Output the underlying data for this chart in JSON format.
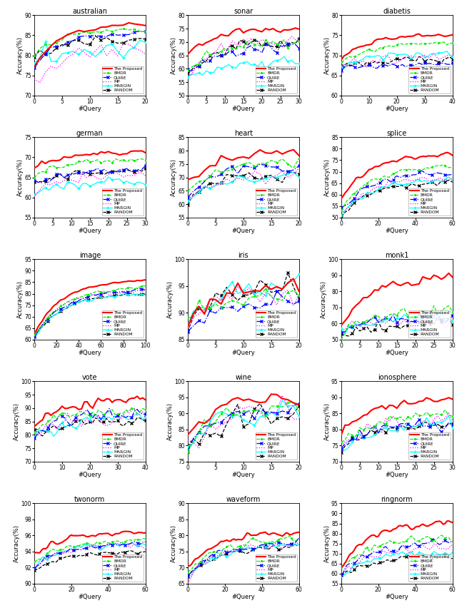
{
  "datasets": [
    {
      "name": "australian",
      "xlim": [
        0,
        20
      ],
      "ylim": [
        70,
        90
      ],
      "yticks": [
        70,
        75,
        80,
        85,
        90
      ],
      "xticks": [
        0,
        5,
        10,
        15,
        20
      ],
      "n_queries": 21
    },
    {
      "name": "sonar",
      "xlim": [
        0,
        30
      ],
      "ylim": [
        50,
        80
      ],
      "yticks": [
        50,
        55,
        60,
        65,
        70,
        75,
        80
      ],
      "xticks": [
        0,
        5,
        10,
        15,
        20,
        25,
        30
      ],
      "n_queries": 31
    },
    {
      "name": "diabetis",
      "xlim": [
        0,
        40
      ],
      "ylim": [
        60,
        80
      ],
      "yticks": [
        60,
        65,
        70,
        75,
        80
      ],
      "xticks": [
        0,
        10,
        20,
        30,
        40
      ],
      "n_queries": 41
    },
    {
      "name": "german",
      "xlim": [
        0,
        30
      ],
      "ylim": [
        55,
        75
      ],
      "yticks": [
        55,
        60,
        65,
        70,
        75
      ],
      "xticks": [
        0,
        5,
        10,
        15,
        20,
        25,
        30
      ],
      "n_queries": 31
    },
    {
      "name": "heart",
      "xlim": [
        0,
        20
      ],
      "ylim": [
        55,
        85
      ],
      "yticks": [
        55,
        60,
        65,
        70,
        75,
        80,
        85
      ],
      "xticks": [
        0,
        5,
        10,
        15,
        20
      ],
      "n_queries": 21
    },
    {
      "name": "splice",
      "xlim": [
        0,
        60
      ],
      "ylim": [
        50,
        85
      ],
      "yticks": [
        50,
        55,
        60,
        65,
        70,
        75,
        80,
        85
      ],
      "xticks": [
        0,
        20,
        40,
        60
      ],
      "n_queries": 61
    },
    {
      "name": "image",
      "xlim": [
        0,
        100
      ],
      "ylim": [
        60,
        95
      ],
      "yticks": [
        60,
        65,
        70,
        75,
        80,
        85,
        90,
        95
      ],
      "xticks": [
        0,
        20,
        40,
        60,
        80,
        100
      ],
      "n_queries": 101
    },
    {
      "name": "iris",
      "xlim": [
        0,
        20
      ],
      "ylim": [
        85,
        100
      ],
      "yticks": [
        85,
        90,
        95,
        100
      ],
      "xticks": [
        0,
        5,
        10,
        15,
        20
      ],
      "n_queries": 21
    },
    {
      "name": "monk1",
      "xlim": [
        0,
        30
      ],
      "ylim": [
        50,
        100
      ],
      "yticks": [
        50,
        60,
        70,
        80,
        90,
        100
      ],
      "xticks": [
        0,
        5,
        10,
        15,
        20,
        25,
        30
      ],
      "n_queries": 31
    },
    {
      "name": "vote",
      "xlim": [
        0,
        40
      ],
      "ylim": [
        70,
        100
      ],
      "yticks": [
        70,
        75,
        80,
        85,
        90,
        95,
        100
      ],
      "xticks": [
        0,
        10,
        20,
        30,
        40
      ],
      "n_queries": 41
    },
    {
      "name": "wine",
      "xlim": [
        0,
        20
      ],
      "ylim": [
        75,
        100
      ],
      "yticks": [
        75,
        80,
        85,
        90,
        95,
        100
      ],
      "xticks": [
        0,
        5,
        10,
        15,
        20
      ],
      "n_queries": 21
    },
    {
      "name": "ionosphere",
      "xlim": [
        0,
        30
      ],
      "ylim": [
        70,
        95
      ],
      "yticks": [
        70,
        75,
        80,
        85,
        90,
        95
      ],
      "xticks": [
        0,
        5,
        10,
        15,
        20,
        25,
        30
      ],
      "n_queries": 31
    },
    {
      "name": "twonorm",
      "xlim": [
        0,
        60
      ],
      "ylim": [
        90,
        100
      ],
      "yticks": [
        90,
        92,
        94,
        96,
        98,
        100
      ],
      "xticks": [
        0,
        20,
        40,
        60
      ],
      "n_queries": 61
    },
    {
      "name": "waveform",
      "xlim": [
        0,
        60
      ],
      "ylim": [
        65,
        90
      ],
      "yticks": [
        65,
        70,
        75,
        80,
        85,
        90
      ],
      "xticks": [
        0,
        20,
        40,
        60
      ],
      "n_queries": 61
    },
    {
      "name": "ringnorm",
      "xlim": [
        0,
        60
      ],
      "ylim": [
        55,
        95
      ],
      "yticks": [
        55,
        60,
        65,
        70,
        75,
        80,
        85,
        90,
        95
      ],
      "xticks": [
        0,
        20,
        40,
        60
      ],
      "n_queries": 61
    }
  ],
  "methods": [
    "The Proposed",
    "BMDR",
    "QUIRE",
    "MP",
    "MARGIN",
    "RANDOM"
  ],
  "method_styles": {
    "The Proposed": {
      "color": "red",
      "ls": "-",
      "lw": 1.5,
      "marker": "None",
      "ms": 2.5,
      "dashes": []
    },
    "BMDR": {
      "color": "#00ee00",
      "ls": "--",
      "lw": 0.9,
      "marker": ".",
      "ms": 2.5,
      "dashes": [
        4,
        2
      ]
    },
    "QUIRE": {
      "color": "blue",
      "ls": "-.",
      "lw": 0.9,
      "marker": "x",
      "ms": 2.5,
      "dashes": []
    },
    "MP": {
      "color": "magenta",
      "ls": ":",
      "lw": 0.9,
      "marker": "None",
      "ms": 2.5,
      "dashes": []
    },
    "MARGIN": {
      "color": "cyan",
      "ls": "-",
      "lw": 0.9,
      "marker": "+",
      "ms": 2.5,
      "dashes": []
    },
    "RANDOM": {
      "color": "black",
      "ls": "--",
      "lw": 0.9,
      "marker": "x",
      "ms": 2.5,
      "dashes": [
        2,
        2
      ]
    }
  },
  "curve_params": {
    "australian": {
      "The Proposed": [
        77.0,
        87.5,
        88.5,
        0.6,
        1.0
      ],
      "BMDR": [
        80.0,
        86.5,
        87.0,
        0.7,
        0.8
      ],
      "QUIRE": [
        77.0,
        85.5,
        86.0,
        0.8,
        0.8
      ],
      "MP": [
        72.0,
        80.0,
        85.5,
        2.0,
        0.5
      ],
      "MARGIN": [
        76.5,
        78.0,
        85.0,
        2.5,
        0.4
      ],
      "RANDOM": [
        79.0,
        82.5,
        86.0,
        1.2,
        0.6
      ]
    },
    "sonar": {
      "The Proposed": [
        65.0,
        73.0,
        78.0,
        1.5,
        0.7
      ],
      "BMDR": [
        60.0,
        67.0,
        73.0,
        2.0,
        0.6
      ],
      "QUIRE": [
        58.0,
        64.0,
        72.0,
        1.8,
        0.6
      ],
      "MP": [
        58.0,
        66.0,
        76.0,
        2.5,
        0.5
      ],
      "MARGIN": [
        57.0,
        60.0,
        65.0,
        2.0,
        0.5
      ],
      "RANDOM": [
        58.0,
        66.0,
        75.0,
        2.5,
        0.5
      ]
    },
    "diabetis": {
      "The Proposed": [
        69.0,
        74.5,
        76.0,
        0.5,
        0.8
      ],
      "BMDR": [
        68.0,
        72.5,
        74.0,
        0.6,
        0.7
      ],
      "QUIRE": [
        67.0,
        67.5,
        68.0,
        0.8,
        0.5
      ],
      "MP": [
        67.0,
        69.0,
        70.5,
        1.2,
        0.5
      ],
      "MARGIN": [
        67.5,
        69.5,
        71.5,
        1.0,
        0.5
      ],
      "RANDOM": [
        67.0,
        68.5,
        70.0,
        0.9,
        0.5
      ]
    },
    "german": {
      "The Proposed": [
        67.0,
        70.5,
        72.5,
        0.6,
        0.7
      ],
      "BMDR": [
        65.5,
        68.5,
        70.5,
        0.7,
        0.6
      ],
      "QUIRE": [
        63.0,
        66.0,
        68.0,
        0.8,
        0.6
      ],
      "MP": [
        61.5,
        64.5,
        67.0,
        1.0,
        0.5
      ],
      "MARGIN": [
        60.5,
        63.0,
        65.5,
        1.0,
        0.5
      ],
      "RANDOM": [
        63.0,
        66.0,
        68.0,
        0.9,
        0.5
      ]
    },
    "heart": {
      "The Proposed": [
        67.0,
        78.0,
        82.0,
        2.0,
        0.6
      ],
      "BMDR": [
        64.0,
        74.0,
        78.0,
        2.2,
        0.5
      ],
      "QUIRE": [
        63.0,
        72.0,
        76.0,
        2.2,
        0.5
      ],
      "MP": [
        60.0,
        69.0,
        74.0,
        2.8,
        0.4
      ],
      "MARGIN": [
        61.0,
        68.0,
        73.0,
        2.8,
        0.4
      ],
      "RANDOM": [
        62.0,
        70.0,
        73.0,
        2.2,
        0.5
      ]
    },
    "splice": {
      "The Proposed": [
        58.0,
        74.0,
        82.0,
        1.2,
        0.7
      ],
      "BMDR": [
        53.0,
        68.0,
        78.0,
        1.5,
        0.6
      ],
      "QUIRE": [
        53.0,
        65.0,
        75.0,
        1.3,
        0.6
      ],
      "MP": [
        51.0,
        62.0,
        74.0,
        2.0,
        0.5
      ],
      "MARGIN": [
        51.0,
        61.0,
        73.0,
        1.8,
        0.5
      ],
      "RANDOM": [
        51.0,
        60.0,
        72.0,
        1.5,
        0.5
      ]
    },
    "image": {
      "The Proposed": [
        62.0,
        82.0,
        91.0,
        1.0,
        0.8
      ],
      "BMDR": [
        61.0,
        78.0,
        89.0,
        1.2,
        0.7
      ],
      "QUIRE": [
        61.0,
        76.0,
        88.5,
        1.2,
        0.7
      ],
      "MP": [
        62.0,
        76.0,
        88.0,
        1.5,
        0.6
      ],
      "MARGIN": [
        61.0,
        74.0,
        87.5,
        1.2,
        0.7
      ],
      "RANDOM": [
        61.0,
        74.0,
        87.5,
        1.0,
        0.7
      ]
    },
    "iris": {
      "The Proposed": [
        88.0,
        94.5,
        96.5,
        1.5,
        0.6
      ],
      "BMDR": [
        88.0,
        93.0,
        94.0,
        1.8,
        0.5
      ],
      "QUIRE": [
        87.0,
        91.0,
        93.0,
        2.0,
        0.5
      ],
      "MP": [
        87.5,
        92.0,
        95.0,
        2.5,
        0.4
      ],
      "MARGIN": [
        88.5,
        93.5,
        96.5,
        2.0,
        0.5
      ],
      "RANDOM": [
        88.0,
        93.5,
        95.5,
        2.2,
        0.5
      ]
    },
    "monk1": {
      "The Proposed": [
        58.0,
        82.0,
        98.0,
        3.0,
        0.7
      ],
      "BMDR": [
        54.0,
        64.0,
        75.0,
        4.0,
        0.5
      ],
      "QUIRE": [
        53.0,
        61.0,
        70.0,
        4.0,
        0.5
      ],
      "MP": [
        53.0,
        59.0,
        68.0,
        4.5,
        0.4
      ],
      "MARGIN": [
        53.0,
        61.0,
        70.0,
        4.0,
        0.5
      ],
      "RANDOM": [
        52.0,
        57.0,
        64.0,
        3.5,
        0.4
      ]
    },
    "vote": {
      "The Proposed": [
        83.0,
        91.0,
        95.5,
        2.0,
        0.7
      ],
      "BMDR": [
        81.0,
        87.0,
        91.5,
        2.5,
        0.6
      ],
      "QUIRE": [
        80.0,
        86.0,
        91.0,
        2.5,
        0.6
      ],
      "MP": [
        79.0,
        85.0,
        89.5,
        3.0,
        0.5
      ],
      "MARGIN": [
        79.0,
        84.0,
        89.0,
        2.8,
        0.5
      ],
      "RANDOM": [
        79.0,
        83.5,
        88.0,
        2.2,
        0.6
      ]
    },
    "wine": {
      "The Proposed": [
        83.0,
        93.0,
        97.0,
        2.0,
        0.7
      ],
      "BMDR": [
        80.0,
        90.0,
        95.0,
        2.5,
        0.6
      ],
      "QUIRE": [
        79.0,
        88.5,
        94.5,
        2.5,
        0.6
      ],
      "MP": [
        79.0,
        88.0,
        95.0,
        4.0,
        0.4
      ],
      "MARGIN": [
        80.0,
        89.5,
        94.0,
        3.5,
        0.5
      ],
      "RANDOM": [
        79.0,
        87.0,
        92.0,
        4.0,
        0.4
      ]
    },
    "ionosphere": {
      "The Proposed": [
        78.0,
        87.5,
        92.0,
        1.3,
        0.7
      ],
      "BMDR": [
        75.0,
        83.0,
        87.5,
        1.8,
        0.6
      ],
      "QUIRE": [
        74.0,
        80.0,
        84.5,
        1.8,
        0.6
      ],
      "MP": [
        74.0,
        81.0,
        86.0,
        2.5,
        0.5
      ],
      "MARGIN": [
        74.0,
        80.0,
        85.5,
        2.0,
        0.5
      ],
      "RANDOM": [
        74.0,
        79.5,
        83.5,
        2.0,
        0.5
      ]
    },
    "twonorm": {
      "The Proposed": [
        93.5,
        96.0,
        97.0,
        0.4,
        0.8
      ],
      "BMDR": [
        92.5,
        95.0,
        96.0,
        0.5,
        0.7
      ],
      "QUIRE": [
        92.0,
        94.5,
        95.5,
        0.5,
        0.7
      ],
      "MP": [
        92.0,
        94.5,
        95.5,
        0.6,
        0.7
      ],
      "MARGIN": [
        92.0,
        94.5,
        95.5,
        0.5,
        0.7
      ],
      "RANDOM": [
        91.5,
        93.5,
        94.5,
        0.4,
        0.8
      ]
    },
    "waveform": {
      "The Proposed": [
        70.0,
        79.0,
        83.0,
        1.2,
        0.7
      ],
      "BMDR": [
        68.0,
        77.0,
        81.0,
        1.4,
        0.6
      ],
      "QUIRE": [
        67.5,
        76.0,
        80.0,
        1.3,
        0.6
      ],
      "MP": [
        67.0,
        75.5,
        80.0,
        1.8,
        0.5
      ],
      "MARGIN": [
        67.0,
        75.0,
        79.5,
        1.5,
        0.5
      ],
      "RANDOM": [
        67.0,
        75.0,
        79.0,
        1.3,
        0.6
      ]
    },
    "ringnorm": {
      "The Proposed": [
        63.0,
        80.0,
        92.0,
        2.0,
        0.7
      ],
      "BMDR": [
        61.0,
        73.0,
        85.0,
        2.5,
        0.6
      ],
      "QUIRE": [
        60.0,
        70.0,
        82.0,
        2.5,
        0.6
      ],
      "MP": [
        59.5,
        67.0,
        80.0,
        3.0,
        0.5
      ],
      "MARGIN": [
        59.0,
        65.0,
        78.0,
        2.5,
        0.5
      ],
      "RANDOM": [
        59.0,
        63.0,
        75.0,
        2.0,
        0.5
      ]
    }
  }
}
